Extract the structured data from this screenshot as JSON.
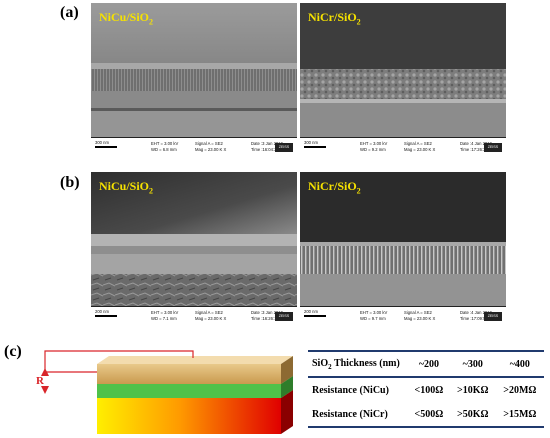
{
  "panels": {
    "a": {
      "letter": "(a)"
    },
    "b": {
      "letter": "(b)"
    },
    "c": {
      "letter": "(c)"
    }
  },
  "sem": {
    "a_left": {
      "film": "NiCu/SiO",
      "sub": "2",
      "scale": "300 nm",
      "eht": "EHT = 3.00 kV",
      "wd": "WD = 6.8 mm",
      "signal": "Signal A = SE2",
      "mag": "Mag = 23.00 K X",
      "date": "Date :3 Jan 2019",
      "time": "Time :16:04:30"
    },
    "a_right": {
      "film": "NiCr/SiO",
      "sub": "2",
      "scale": "300 nm",
      "eht": "EHT = 3.00 kV",
      "wd": "WD = 9.2 mm",
      "signal": "Signal A = SE2",
      "mag": "Mag = 23.00 K X",
      "date": "Date :4 Jan 2019",
      "time": "Time :17:26:36"
    },
    "b_left": {
      "film": "NiCu/SiO",
      "sub": "2",
      "scale": "200 nm",
      "eht": "EHT = 3.00 kV",
      "wd": "WD = 7.1 mm",
      "signal": "Signal A = SE2",
      "mag": "Mag = 23.00 K X",
      "date": "Date :3 Jan 2019",
      "time": "Time :16:26:10"
    },
    "b_right": {
      "film": "NiCr/SiO",
      "sub": "2",
      "scale": "200 nm",
      "eht": "EHT = 3.00 kV",
      "wd": "WD = 9.7 mm",
      "signal": "Signal A = SE2",
      "mag": "Mag = 23.00 K X",
      "date": "Date :4 Jan 2019",
      "time": "Time :17:09:59"
    },
    "logo_text": "ZEISS"
  },
  "schematic": {
    "r_label": "R"
  },
  "table": {
    "header": {
      "label": "SiO",
      "sub": "2",
      "rest": " Thickness (nm)",
      "values": [
        "~200",
        "~300",
        "~400"
      ]
    },
    "rows": [
      {
        "label": "Resistance (NiCu)",
        "values": [
          "<100Ω",
          ">10KΩ",
          ">20MΩ"
        ]
      },
      {
        "label": "Resistance (NiCr)",
        "values": [
          "<500Ω",
          ">50KΩ",
          ">15MΩ"
        ]
      }
    ]
  },
  "colors": {
    "label_yellow": "#f6e200",
    "rule_blue": "#203a6e",
    "wire_red": "#d9252a"
  }
}
